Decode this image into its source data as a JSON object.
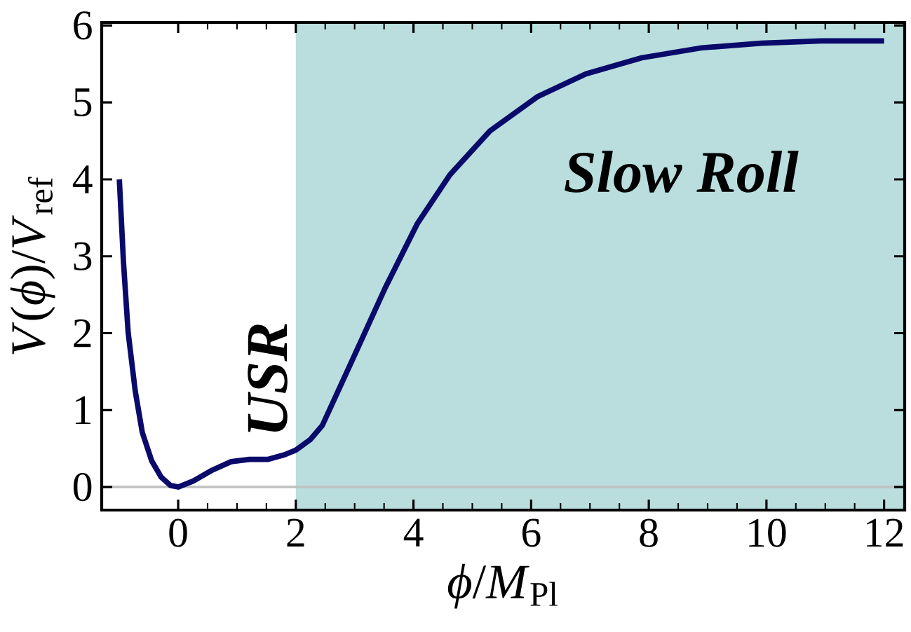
{
  "chart_data": {
    "type": "line",
    "xlabel": "*ϕ*/*M*$_{Pl}$",
    "ylabel": "*V*(*ϕ*)/*V*$_{ref}$",
    "x": [
      -1,
      -0.93,
      -0.85,
      -0.73,
      -0.61,
      -0.45,
      -0.29,
      -0.13,
      0,
      0.26,
      0.58,
      0.9,
      1.21,
      1.53,
      1.81,
      2,
      2.25,
      2.45,
      2.99,
      3.52,
      4.07,
      4.62,
      5.3,
      6.12,
      6.93,
      7.88,
      8.9,
      9.92,
      10.94,
      12
    ],
    "series": [
      {
        "color": "#0a0a6b",
        "values": [
          4,
          2.93,
          2.01,
          1.25,
          0.71,
          0.34,
          0.13,
          0.02,
          0,
          0.08,
          0.22,
          0.33,
          0.36,
          0.36,
          0.42,
          0.48,
          0.62,
          0.8,
          1.7,
          2.59,
          3.43,
          4.06,
          4.63,
          5.08,
          5.37,
          5.58,
          5.71,
          5.77,
          5.8,
          5.8
        ]
      }
    ],
    "xlim": [
      -1.3,
      12.35
    ],
    "ylim": [
      -0.3,
      6.04
    ],
    "xticks": [
      0,
      2,
      4,
      6,
      8,
      10,
      12
    ],
    "yticks": [
      0,
      1,
      2,
      3,
      4,
      5,
      6
    ],
    "bands": [
      {
        "axis": "x",
        "from": 2,
        "to": 12.35,
        "color": "#b9dedd"
      }
    ],
    "ref_lines": [
      {
        "axis": "y",
        "value": 0,
        "color": "#c0c0c0"
      }
    ],
    "annotations": [
      "USR",
      "Slow Roll"
    ],
    "line_style": "solid"
  }
}
